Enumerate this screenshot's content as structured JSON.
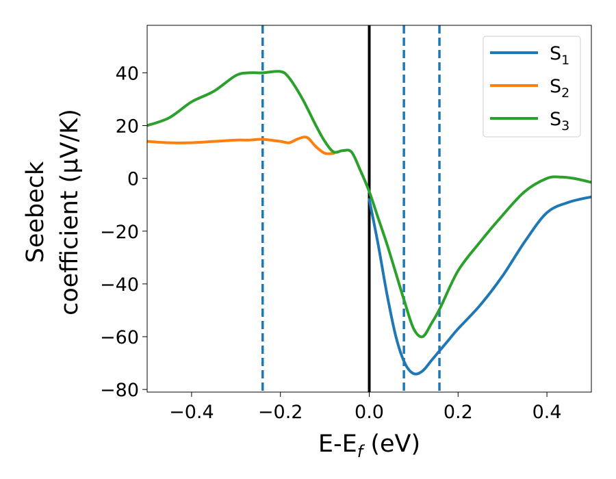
{
  "chart_data": {
    "type": "line",
    "xlabel": "E-E",
    "xlabel_subscript": "f",
    "xlabel_unit": " (eV)",
    "ylabel_line1": "Seebeck",
    "ylabel_line2": "coefficient  (μV/K)",
    "xlim": [
      -0.5,
      0.5
    ],
    "ylim": [
      -81,
      58
    ],
    "xticks": [
      -0.4,
      -0.2,
      0.0,
      0.2,
      0.4
    ],
    "xtick_labels": [
      "−0.4",
      "−0.2",
      "0.0",
      "0.2",
      "0.4"
    ],
    "yticks": [
      -80,
      -60,
      -40,
      -20,
      0,
      20,
      40
    ],
    "ytick_labels": [
      "−80",
      "−60",
      "−40",
      "−20",
      "0",
      "20",
      "40"
    ],
    "grid": false,
    "legend_position": "top-right",
    "vlines": [
      {
        "x": 0.0,
        "color": "#000000",
        "style": "solid"
      },
      {
        "x": -0.24,
        "color": "#1f77b4",
        "style": "dashed"
      },
      {
        "x": 0.078,
        "color": "#1f77b4",
        "style": "dashed"
      },
      {
        "x": 0.158,
        "color": "#1f77b4",
        "style": "dashed"
      }
    ],
    "series": [
      {
        "name": "S",
        "subscript": "1",
        "color": "#1f77b4",
        "x": [
          0.0,
          0.02,
          0.04,
          0.06,
          0.08,
          0.1,
          0.12,
          0.14,
          0.16,
          0.18,
          0.2,
          0.25,
          0.3,
          0.35,
          0.4,
          0.45,
          0.5
        ],
        "y": [
          -8,
          -25,
          -44,
          -60,
          -70,
          -74,
          -73,
          -69,
          -65,
          -61,
          -57,
          -48,
          -37,
          -24,
          -13,
          -9,
          -7
        ]
      },
      {
        "name": "S",
        "subscript": "2",
        "color": "#ff7f0e",
        "x": [
          -0.5,
          -0.45,
          -0.4,
          -0.35,
          -0.3,
          -0.27,
          -0.24,
          -0.2,
          -0.18,
          -0.16,
          -0.14,
          -0.12,
          -0.1,
          -0.08
        ],
        "y": [
          14,
          13.5,
          13.5,
          14,
          14.5,
          14.5,
          14.8,
          14,
          13.5,
          15,
          15.5,
          12,
          9.5,
          9.5
        ]
      },
      {
        "name": "S",
        "subscript": "3",
        "color": "#2ca02c",
        "x": [
          -0.5,
          -0.45,
          -0.4,
          -0.35,
          -0.3,
          -0.27,
          -0.24,
          -0.2,
          -0.18,
          -0.15,
          -0.12,
          -0.1,
          -0.08,
          -0.06,
          -0.04,
          -0.02,
          0.0,
          0.02,
          0.04,
          0.06,
          0.08,
          0.1,
          0.12,
          0.14,
          0.16,
          0.2,
          0.25,
          0.3,
          0.35,
          0.4,
          0.43,
          0.46,
          0.5
        ],
        "y": [
          20,
          23,
          29,
          33,
          39,
          40,
          40,
          40.5,
          38,
          30,
          20,
          14,
          10,
          10.5,
          10,
          3,
          -5,
          -15,
          -25,
          -36,
          -47,
          -57,
          -60,
          -55,
          -49,
          -35,
          -24,
          -14,
          -5,
          0,
          0.5,
          0,
          -1.5
        ]
      }
    ]
  }
}
